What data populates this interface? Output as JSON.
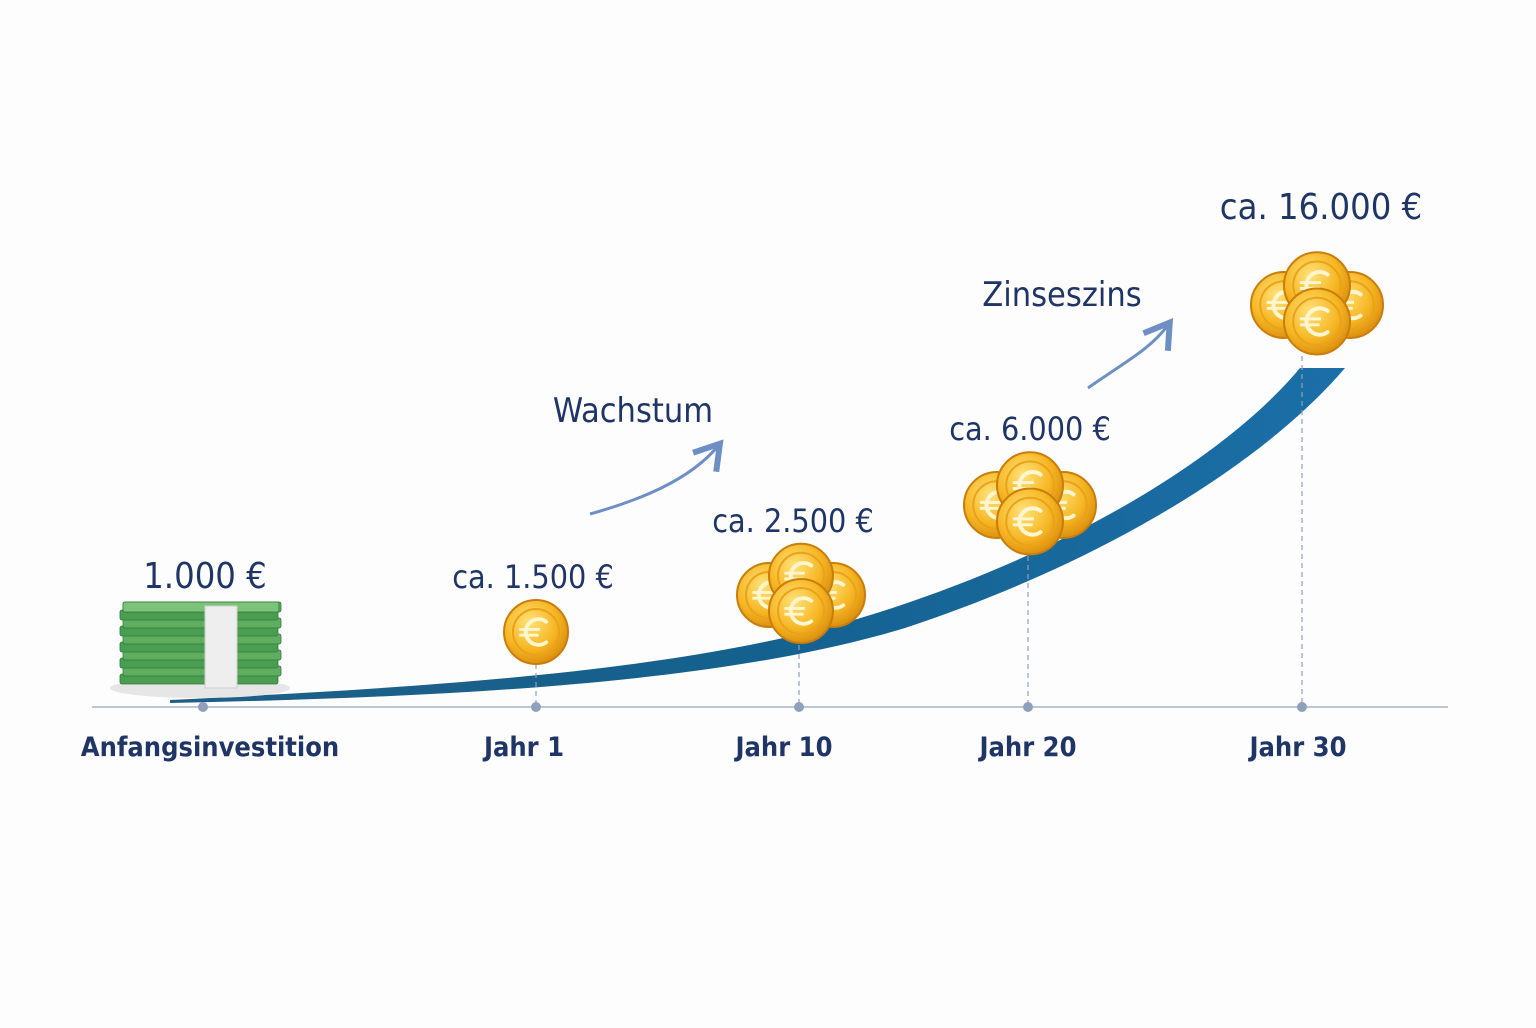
{
  "milestones": [
    {
      "label": "Anfangsinvestition",
      "amount": "1.000 €"
    },
    {
      "label": "Jahr 1",
      "amount": "ca. 1.500 €"
    },
    {
      "label": "Jahr 10",
      "amount": "ca. 2.500 €"
    },
    {
      "label": "Jahr 20",
      "amount": "ca. 6.000 €"
    },
    {
      "label": "Jahr 30",
      "amount": "ca. 16.000 €"
    }
  ],
  "annotations": [
    "Wachstum",
    "Zinseszins"
  ]
}
